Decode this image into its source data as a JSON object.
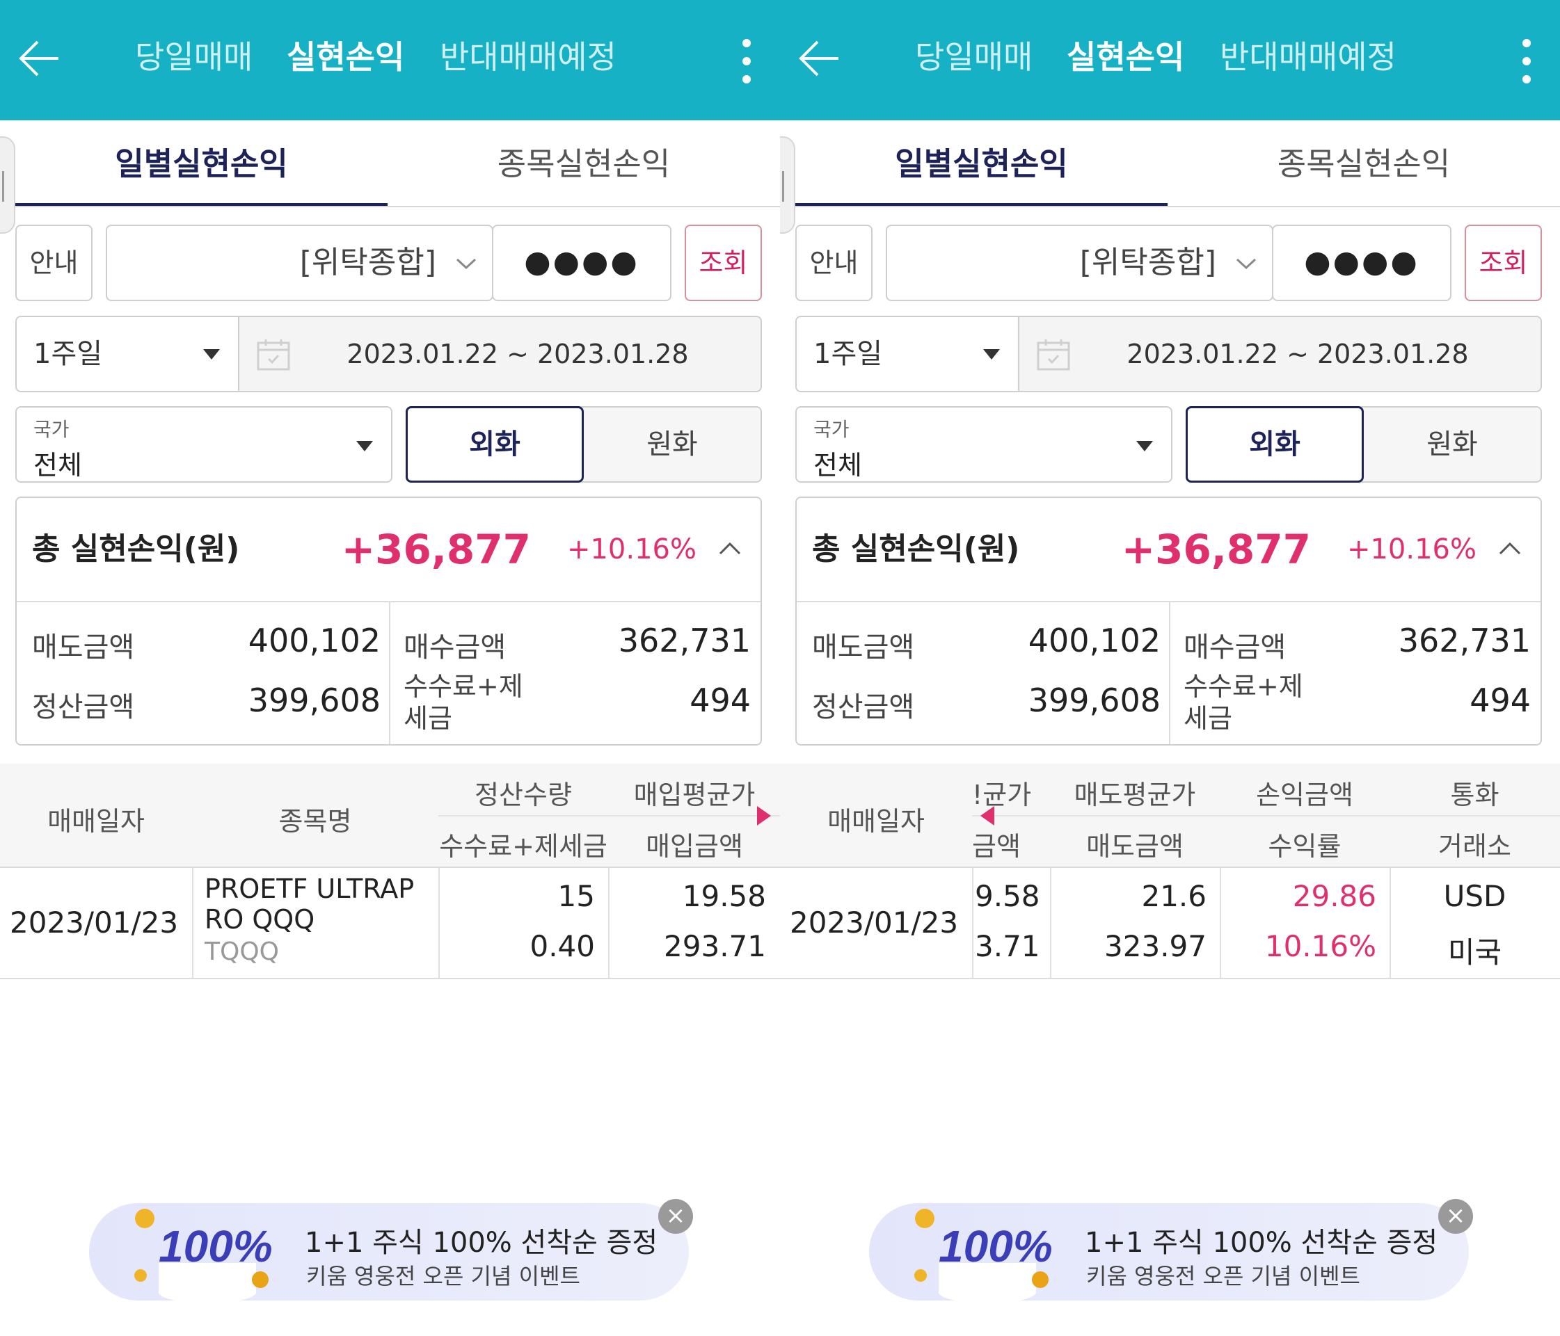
{
  "header": {
    "tabs": [
      "당일매매",
      "실현손익",
      "반대매매예정"
    ],
    "active_tab": "실현손익"
  },
  "subtabs": {
    "daily": "일별실현손익",
    "by_stock": "종목실현손익"
  },
  "account": {
    "guide_label": "안내",
    "type_label": "[위탁종합]",
    "password_mask": "●●●●",
    "query_label": "조회"
  },
  "period": {
    "selected": "1주일",
    "range": "2023.01.22 ~ 2023.01.28"
  },
  "country": {
    "label": "국가",
    "value": "전체"
  },
  "currency_toggle": {
    "foreign": "외화",
    "won": "원화",
    "selected": "외화"
  },
  "summary": {
    "title": "총 실현손익(원)",
    "amount": "+36,877",
    "rate": "+10.16%",
    "sell_label": "매도금액",
    "sell_value": "400,102",
    "buy_label": "매수금액",
    "buy_value": "362,731",
    "settle_label": "정산금액",
    "settle_value": "399,608",
    "fee_label_1": "수수료+제",
    "fee_label_2": "세금",
    "fee_value": "494"
  },
  "table_left": {
    "headers": {
      "date": "매매일자",
      "name": "종목명",
      "qty": "정산수량",
      "fee": "수수료+제세금",
      "avg_buy": "매입평균가",
      "buy_amt": "매입금액"
    },
    "row": {
      "date": "2023/01/23",
      "name_line1": "PROETF ULTRAP",
      "name_line2": "RO QQQ",
      "ticker": "TQQQ",
      "qty": "15",
      "fee": "0.40",
      "avg_buy": "19.58",
      "buy_amt": "293.71"
    }
  },
  "table_right": {
    "headers": {
      "date": "매매일자",
      "avg_buy_partial": "!균가",
      "buy_amt_partial": "금액",
      "avg_sell": "매도평균가",
      "sell_amt": "매도금액",
      "pnl": "손익금액",
      "ret": "수익률",
      "currency": "통화",
      "exchange": "거래소"
    },
    "row": {
      "date": "2023/01/23",
      "avg_buy_partial": "9.58",
      "buy_amt_partial": "3.71",
      "avg_sell": "21.6",
      "sell_amt": "323.97",
      "pnl": "29.86",
      "ret": "10.16%",
      "currency": "USD",
      "exchange": "미국"
    }
  },
  "banner": {
    "badge": "100%",
    "title": "1+1 주식 100% 선착순 증정",
    "subtitle": "키움 영웅전 오픈 기념 이벤트",
    "close": "×"
  },
  "colors": {
    "header_bg": "#16b1c4",
    "navy": "#1d2259",
    "profit_pink": "#e02f6d",
    "banner_bg": "#e3e6fb"
  },
  "icons": [
    "back-arrow-icon",
    "more-vert-icon",
    "chevron-down-icon",
    "dropdown-triangle-icon",
    "calendar-icon",
    "chevron-up-icon",
    "scroll-right-arrow-icon",
    "scroll-left-arrow-icon",
    "close-icon",
    "coin-icon"
  ]
}
